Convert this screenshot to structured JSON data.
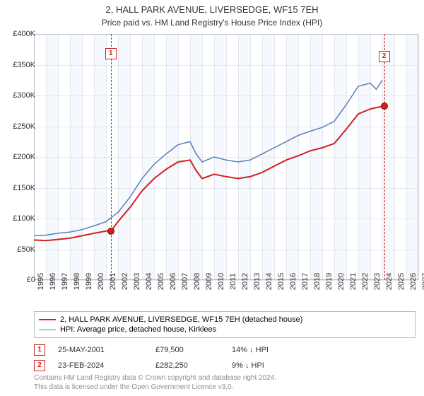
{
  "header": {
    "title": "2, HALL PARK AVENUE, LIVERSEDGE, WF15 7EH",
    "subtitle": "Price paid vs. HM Land Registry's House Price Index (HPI)"
  },
  "chart": {
    "type": "line",
    "background_color": "#ffffff",
    "plot_shade_color": "#f5f8fc",
    "grid_color": "#e4e8ee",
    "border_color": "#b7bfca",
    "ylim": [
      0,
      400000
    ],
    "ytick_step": 50000,
    "yticks": [
      "£0",
      "£50K",
      "£100K",
      "£150K",
      "£200K",
      "£250K",
      "£300K",
      "£350K",
      "£400K"
    ],
    "xlim": [
      1995,
      2027
    ],
    "xtick_step": 1,
    "xticks": [
      "1995",
      "1996",
      "1997",
      "1998",
      "1999",
      "2000",
      "2001",
      "2002",
      "2003",
      "2004",
      "2005",
      "2006",
      "2007",
      "2008",
      "2009",
      "2010",
      "2011",
      "2012",
      "2013",
      "2014",
      "2015",
      "2016",
      "2017",
      "2018",
      "2019",
      "2020",
      "2021",
      "2022",
      "2023",
      "2024",
      "2025",
      "2026",
      "2027"
    ],
    "label_fontsize": 11,
    "series": [
      {
        "name": "price_paid",
        "label": "2, HALL PARK AVENUE, LIVERSEDGE, WF15 7EH (detached house)",
        "color": "#d02020",
        "width": 2,
        "points": [
          [
            1995,
            65000
          ],
          [
            1996,
            64000
          ],
          [
            1997,
            66000
          ],
          [
            1998,
            68000
          ],
          [
            1999,
            72000
          ],
          [
            2000,
            76000
          ],
          [
            2001,
            79500
          ],
          [
            2001.5,
            82000
          ],
          [
            2002,
            95000
          ],
          [
            2003,
            118000
          ],
          [
            2004,
            145000
          ],
          [
            2005,
            165000
          ],
          [
            2006,
            180000
          ],
          [
            2007,
            192000
          ],
          [
            2008,
            195000
          ],
          [
            2008.5,
            178000
          ],
          [
            2009,
            165000
          ],
          [
            2010,
            172000
          ],
          [
            2011,
            168000
          ],
          [
            2012,
            165000
          ],
          [
            2013,
            168000
          ],
          [
            2014,
            175000
          ],
          [
            2015,
            185000
          ],
          [
            2016,
            195000
          ],
          [
            2017,
            202000
          ],
          [
            2018,
            210000
          ],
          [
            2019,
            215000
          ],
          [
            2020,
            222000
          ],
          [
            2021,
            245000
          ],
          [
            2022,
            270000
          ],
          [
            2023,
            278000
          ],
          [
            2024,
            282250
          ]
        ]
      },
      {
        "name": "hpi",
        "label": "HPI: Average price, detached house, Kirklees",
        "color": "#5a7fb8",
        "width": 1.5,
        "points": [
          [
            1995,
            72000
          ],
          [
            1996,
            73000
          ],
          [
            1997,
            76000
          ],
          [
            1998,
            78000
          ],
          [
            1999,
            82000
          ],
          [
            2000,
            88000
          ],
          [
            2001,
            95000
          ],
          [
            2002,
            110000
          ],
          [
            2003,
            135000
          ],
          [
            2004,
            165000
          ],
          [
            2005,
            188000
          ],
          [
            2006,
            205000
          ],
          [
            2007,
            220000
          ],
          [
            2008,
            225000
          ],
          [
            2008.5,
            205000
          ],
          [
            2009,
            192000
          ],
          [
            2010,
            200000
          ],
          [
            2011,
            195000
          ],
          [
            2012,
            192000
          ],
          [
            2013,
            195000
          ],
          [
            2014,
            205000
          ],
          [
            2015,
            215000
          ],
          [
            2016,
            225000
          ],
          [
            2017,
            235000
          ],
          [
            2018,
            242000
          ],
          [
            2019,
            248000
          ],
          [
            2020,
            258000
          ],
          [
            2021,
            285000
          ],
          [
            2022,
            315000
          ],
          [
            2023,
            320000
          ],
          [
            2023.5,
            310000
          ],
          [
            2024,
            325000
          ]
        ]
      }
    ],
    "markers": [
      {
        "n": "1",
        "x": 2001.4,
        "y": 79500,
        "box_top": 20
      },
      {
        "n": "2",
        "x": 2024.15,
        "y": 282250,
        "box_top": 24
      }
    ]
  },
  "legend": {
    "rows": [
      {
        "color": "#d02020",
        "width": 2,
        "label_path": "chart.series.0.label"
      },
      {
        "color": "#5a7fb8",
        "width": 1.5,
        "label_path": "chart.series.1.label"
      }
    ]
  },
  "transactions": [
    {
      "n": "1",
      "date": "25-MAY-2001",
      "price": "£79,500",
      "pct": "14% ↓ HPI"
    },
    {
      "n": "2",
      "date": "23-FEB-2024",
      "price": "£282,250",
      "pct": "9% ↓ HPI"
    }
  ],
  "footnote": {
    "line1": "Contains HM Land Registry data © Crown copyright and database right 2024.",
    "line2": "This data is licensed under the Open Government Licence v3.0."
  }
}
